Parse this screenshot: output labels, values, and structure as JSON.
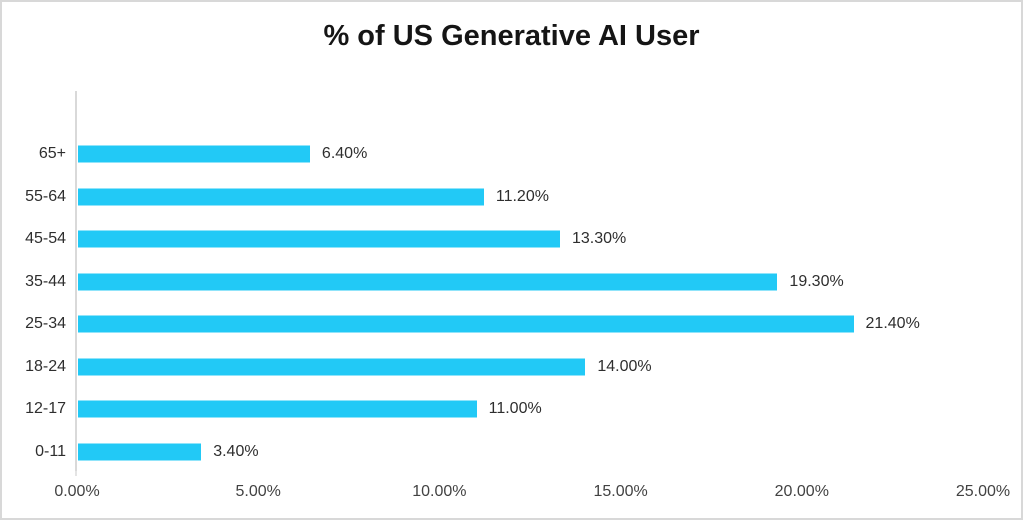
{
  "window": {
    "border_color": "#d8d8d8",
    "background_color": "#ffffff"
  },
  "chart_data": {
    "type": "bar",
    "orientation": "horizontal",
    "title": "% of US Generative AI User",
    "categories": [
      "65+",
      "55-64",
      "45-54",
      "35-44",
      "25-34",
      "18-24",
      "12-17",
      "0-11"
    ],
    "values": [
      6.4,
      11.2,
      13.3,
      19.3,
      21.4,
      14.0,
      11.0,
      3.4
    ],
    "data_labels": [
      "6.40%",
      "11.20%",
      "13.30%",
      "19.30%",
      "21.40%",
      "14.00%",
      "11.00%",
      "3.40%"
    ],
    "row_order": "top_to_bottom",
    "xlabel": "",
    "ylabel": "",
    "x_axis": {
      "min": 0,
      "max": 25,
      "step": 5,
      "tick_labels": [
        "0.00%",
        "5.00%",
        "10.00%",
        "15.00%",
        "20.00%",
        "25.00%"
      ]
    },
    "bar_color": "#22c9f6",
    "axis_line_color": "#d9d9d9",
    "gridlines": false,
    "legend": "none"
  }
}
